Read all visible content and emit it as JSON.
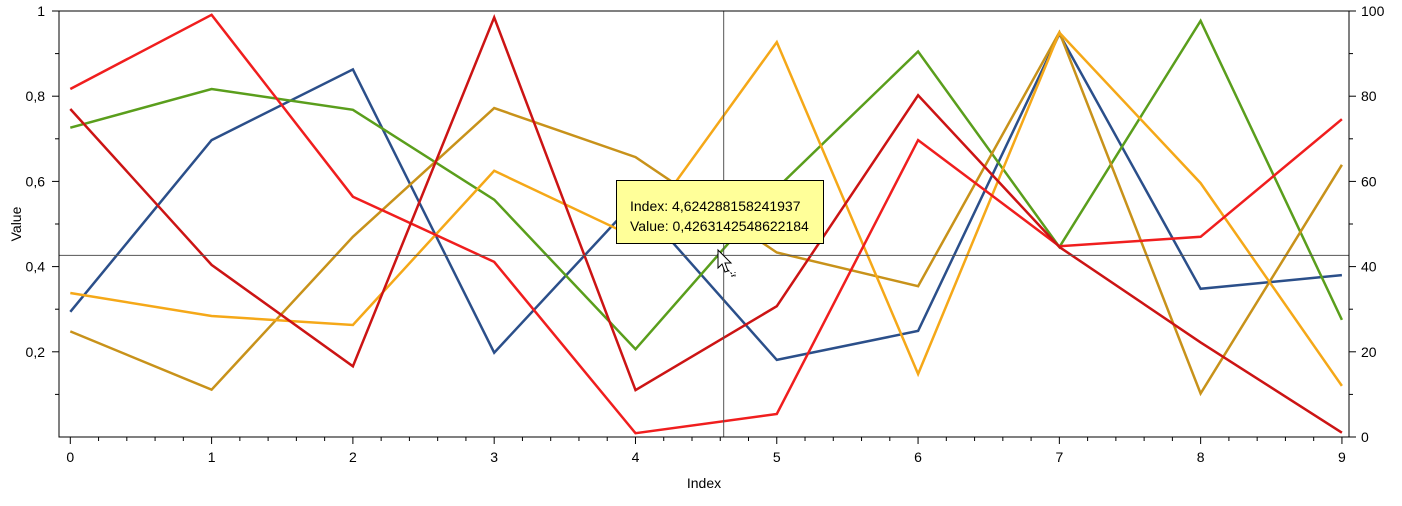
{
  "chart_data": {
    "type": "line",
    "xlabel": "Index",
    "ylabel": "Value",
    "x": [
      0,
      1,
      2,
      3,
      4,
      5,
      6,
      7,
      8,
      9
    ],
    "xlim": [
      -0.08,
      9.05
    ],
    "ylim": [
      0,
      1
    ],
    "y2lim": [
      0,
      100
    ],
    "x_ticks": [
      "0",
      "1",
      "2",
      "3",
      "4",
      "5",
      "6",
      "7",
      "8",
      "9"
    ],
    "y_ticks": [
      {
        "v": 0.2,
        "label": "0,2"
      },
      {
        "v": 0.4,
        "label": "0,4"
      },
      {
        "v": 0.6,
        "label": "0,6"
      },
      {
        "v": 0.8,
        "label": "0,8"
      },
      {
        "v": 1.0,
        "label": "1"
      }
    ],
    "y2_ticks": [
      {
        "v": 0,
        "label": "0"
      },
      {
        "v": 20,
        "label": "20"
      },
      {
        "v": 40,
        "label": "40"
      },
      {
        "v": 60,
        "label": "60"
      },
      {
        "v": 80,
        "label": "80"
      },
      {
        "v": 100,
        "label": "100"
      }
    ],
    "grid": false,
    "legend": "none",
    "series": [
      {
        "color": "#2b4f8a",
        "values": [
          0.294,
          0.697,
          0.863,
          0.198,
          0.555,
          0.181,
          0.249,
          0.946,
          0.348,
          0.38
        ]
      },
      {
        "color": "#5a9e1c",
        "values": [
          0.726,
          0.817,
          0.768,
          0.557,
          0.206,
          0.584,
          0.905,
          0.446,
          0.977,
          0.275
        ]
      },
      {
        "color": "#c8921a",
        "values": [
          0.248,
          0.111,
          0.47,
          0.772,
          0.657,
          0.433,
          0.354,
          0.95,
          0.102,
          0.639
        ]
      },
      {
        "color": "#f5a818",
        "values": [
          0.338,
          0.284,
          0.263,
          0.625,
          0.468,
          0.927,
          0.148,
          0.949,
          0.596,
          0.12
        ]
      },
      {
        "color": "#f01e1e",
        "values": [
          0.817,
          0.991,
          0.564,
          0.411,
          0.009,
          0.054,
          0.697,
          0.448,
          0.47,
          0.746
        ]
      },
      {
        "color": "#cc1414",
        "values": [
          0.77,
          0.404,
          0.166,
          0.985,
          0.11,
          0.307,
          0.802,
          0.446,
          0.222,
          0.01
        ]
      }
    ],
    "crosshair": {
      "x": 4.624288158241937,
      "y": 0.4263142548622184
    },
    "tooltip": {
      "line1": "Index: 4,624288158241937",
      "line2": "Value: 0,4263142548622184"
    }
  }
}
